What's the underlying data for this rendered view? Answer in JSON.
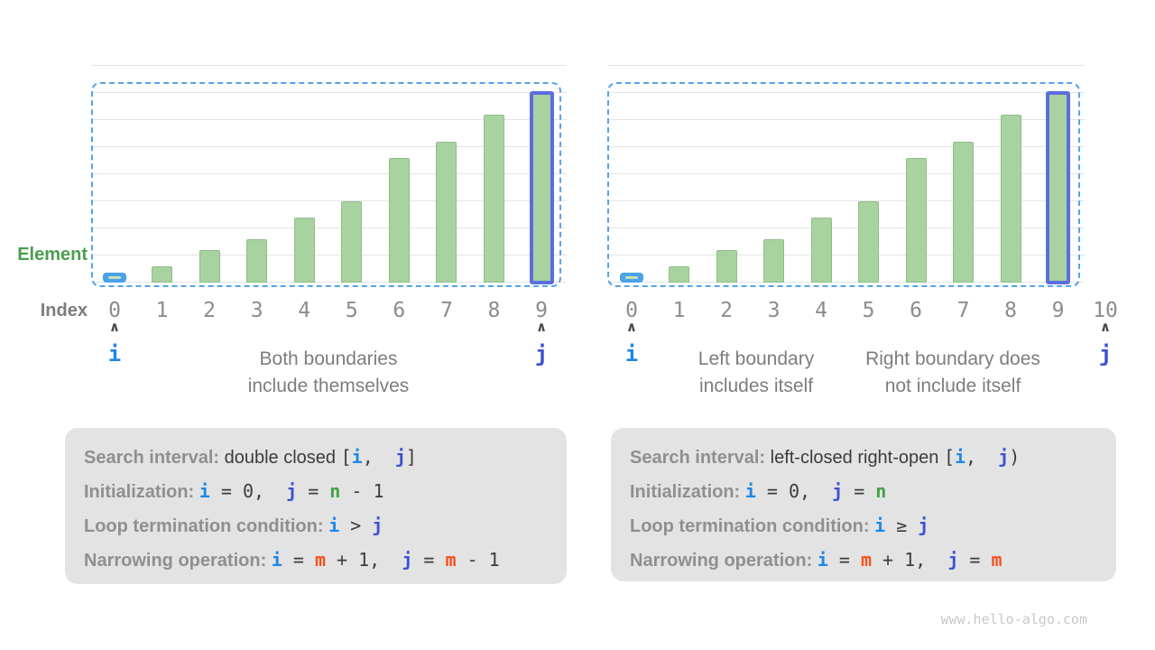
{
  "watermark": "www.hello-algo.com",
  "colors": {
    "i": "#1e88e5",
    "j": "#3d51d0",
    "n": "#43a047",
    "m": "#f4511e",
    "dark": "#3c3c3c",
    "label": "#8f8f8f",
    "bar": "#a8d3a0",
    "bar_border": "#90bd89",
    "outline": "#5b6edd",
    "dashed": "#55a3e8",
    "blue_bar": "#4ba2e8",
    "pill_stripe": "#c9e0b2",
    "grid": "#e4e4e4",
    "element_label": "#4a9e50",
    "axis_label": "#7d7d7d",
    "digit": "#8c8c8c",
    "caption": "#7d7d7d",
    "caret": "#4a4a4a",
    "panel": "#e3e3e3",
    "watermark_color": "#c8c8c8"
  },
  "charts": [
    {
      "name": "double-closed",
      "element_axis_label": "Element",
      "index_axis_label": "Index",
      "indices": [
        "0",
        "1",
        "2",
        "3",
        "4",
        "5",
        "6",
        "7",
        "8",
        "9"
      ],
      "values": [
        1,
        3,
        6,
        8,
        12,
        15,
        23,
        26,
        31,
        35
      ],
      "blue_bar_index": 0,
      "outlined_bar_index": 9,
      "pointers": [
        {
          "label": "i",
          "at_index": 0
        },
        {
          "label": "j",
          "at_index": 9
        }
      ],
      "captions": [
        {
          "lines": [
            "Both boundaries",
            "include themselves"
          ]
        }
      ]
    },
    {
      "name": "left-closed-right-open",
      "indices": [
        "0",
        "1",
        "2",
        "3",
        "4",
        "5",
        "6",
        "7",
        "8",
        "9",
        "10"
      ],
      "values": [
        1,
        3,
        6,
        8,
        12,
        15,
        23,
        26,
        31,
        35
      ],
      "blue_bar_index": 0,
      "outlined_bar_index": 9,
      "pointers": [
        {
          "label": "i",
          "at_index": 0
        },
        {
          "label": "j",
          "at_index": 10
        }
      ],
      "captions": [
        {
          "lines": [
            "Left boundary",
            "includes itself"
          ]
        },
        {
          "lines": [
            "Right boundary does",
            "not include itself"
          ]
        }
      ]
    }
  ],
  "panels": [
    {
      "name": "double-closed-summary",
      "rows": [
        {
          "label": "Search interval",
          "sep": ": ",
          "plain": "double closed ",
          "code": [
            [
              "dark",
              "["
            ],
            [
              "i",
              "i"
            ],
            [
              "dark",
              ",  "
            ],
            [
              "j",
              "j"
            ],
            [
              "dark",
              "]"
            ]
          ]
        },
        {
          "label": "Initialization",
          "sep": ": ",
          "plain": "",
          "code": [
            [
              "i",
              "i"
            ],
            [
              "dark",
              " = 0,  "
            ],
            [
              "j",
              "j"
            ],
            [
              "dark",
              " = "
            ],
            [
              "n",
              "n"
            ],
            [
              "dark",
              " - 1"
            ]
          ]
        },
        {
          "label": "Loop termination condition",
          "sep": ": ",
          "plain": "",
          "code": [
            [
              "i",
              "i"
            ],
            [
              "dark",
              " > "
            ],
            [
              "j",
              "j"
            ]
          ]
        },
        {
          "label": "Narrowing operation",
          "sep": ": ",
          "plain": "",
          "code": [
            [
              "i",
              "i"
            ],
            [
              "dark",
              " = "
            ],
            [
              "m",
              "m"
            ],
            [
              "dark",
              " + 1,  "
            ],
            [
              "j",
              "j"
            ],
            [
              "dark",
              " = "
            ],
            [
              "m",
              "m"
            ],
            [
              "dark",
              " - 1"
            ]
          ]
        }
      ]
    },
    {
      "name": "left-closed-right-open-summary",
      "rows": [
        {
          "label": "Search interval",
          "sep": ": ",
          "plain": "left-closed right-open ",
          "code": [
            [
              "dark",
              "["
            ],
            [
              "i",
              "i"
            ],
            [
              "dark",
              ",  "
            ],
            [
              "j",
              "j"
            ],
            [
              "dark",
              ")"
            ]
          ]
        },
        {
          "label": "Initialization",
          "sep": ": ",
          "plain": "",
          "code": [
            [
              "i",
              "i"
            ],
            [
              "dark",
              " = 0,  "
            ],
            [
              "j",
              "j"
            ],
            [
              "dark",
              " = "
            ],
            [
              "n",
              "n"
            ]
          ]
        },
        {
          "label": "Loop termination condition",
          "sep": ": ",
          "plain": "",
          "code": [
            [
              "i",
              "i"
            ],
            [
              "dark",
              " ≥ "
            ],
            [
              "j",
              "j"
            ]
          ]
        },
        {
          "label": "Narrowing operation",
          "sep": ": ",
          "plain": "",
          "code": [
            [
              "i",
              "i"
            ],
            [
              "dark",
              " = "
            ],
            [
              "m",
              "m"
            ],
            [
              "dark",
              " + 1,  "
            ],
            [
              "j",
              "j"
            ],
            [
              "dark",
              " = "
            ],
            [
              "m",
              "m"
            ]
          ]
        }
      ]
    }
  ],
  "chart_data": {
    "type": "bar",
    "categories": [
      0,
      1,
      2,
      3,
      4,
      5,
      6,
      7,
      8,
      9
    ],
    "values": [
      1,
      3,
      6,
      8,
      12,
      15,
      23,
      26,
      31,
      35
    ],
    "title": "",
    "xlabel": "Index",
    "ylabel": "Element",
    "ylim": [
      0,
      40
    ],
    "grid": true
  }
}
